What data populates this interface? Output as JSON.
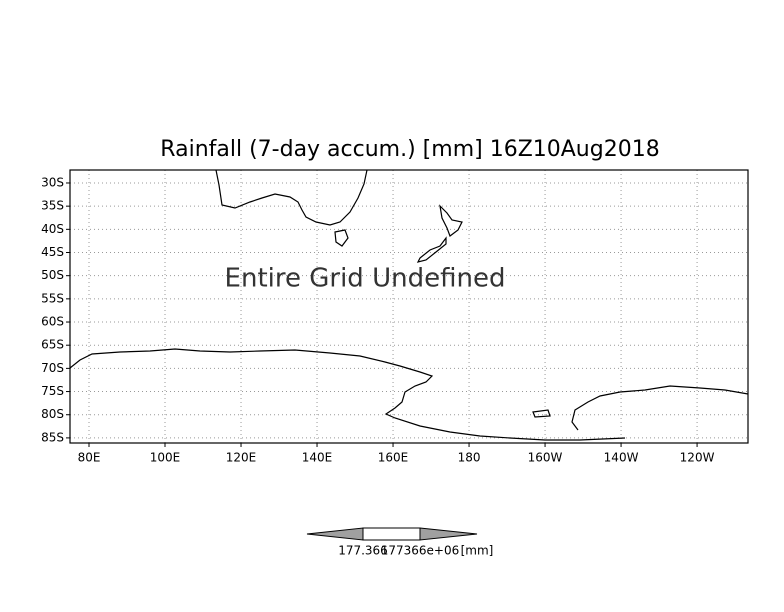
{
  "chart_data": {
    "type": "map",
    "title": "Rainfall (7-day accum.) [mm] 16Z10Aug2018",
    "annotation": "Entire Grid Undefined",
    "xlim": [
      75,
      253.4
    ],
    "ylim": [
      -86.1,
      -27.2
    ],
    "xticks": [
      {
        "value": 80,
        "label": "80E"
      },
      {
        "value": 100,
        "label": "100E"
      },
      {
        "value": 120,
        "label": "120E"
      },
      {
        "value": 140,
        "label": "140E"
      },
      {
        "value": 160,
        "label": "160E"
      },
      180,
      {
        "value": 200,
        "label": "160W"
      },
      {
        "value": 220,
        "label": "140W"
      },
      {
        "value": 240,
        "label": "120W"
      }
    ],
    "yticks": [
      {
        "value": -30,
        "label": "30S"
      },
      {
        "value": -35,
        "label": "35S"
      },
      {
        "value": -40,
        "label": "40S"
      },
      {
        "value": -45,
        "label": "45S"
      },
      {
        "value": -50,
        "label": "50S"
      },
      {
        "value": -55,
        "label": "55S"
      },
      {
        "value": -60,
        "label": "60S"
      },
      {
        "value": -65,
        "label": "65S"
      },
      {
        "value": -70,
        "label": "70S"
      },
      {
        "value": -75,
        "label": "75S"
      },
      {
        "value": -80,
        "label": "80S"
      },
      {
        "value": -85,
        "label": "85S"
      }
    ],
    "grid": true,
    "colorbar": {
      "labels": [
        "177.366",
        "177366e+06"
      ],
      "unit": "[mm]"
    }
  }
}
